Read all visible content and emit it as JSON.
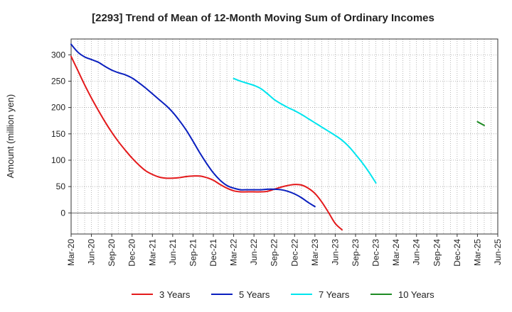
{
  "chart_data": {
    "type": "line",
    "title": "[2293]  Trend of Mean of 12-Month Moving Sum of Ordinary Incomes",
    "xlabel": "",
    "ylabel": "Amount (million yen)",
    "ylim": [
      -40,
      330
    ],
    "yticks": [
      0,
      50,
      100,
      150,
      200,
      250,
      300
    ],
    "grid": true,
    "legend_position": "bottom",
    "x_tick_labels": [
      "Mar-20",
      "Jun-20",
      "Sep-20",
      "Dec-20",
      "Mar-21",
      "Jun-21",
      "Sep-21",
      "Dec-21",
      "Mar-22",
      "Jun-22",
      "Sep-22",
      "Dec-22",
      "Mar-23",
      "Jun-23",
      "Sep-23",
      "Dec-23",
      "Mar-24",
      "Jun-24",
      "Sep-24",
      "Dec-24",
      "Mar-25",
      "Jun-25"
    ],
    "series": [
      {
        "name": "3 Years",
        "color": "#e41a1c",
        "x_start": 0,
        "values": [
          297,
          270,
          243,
          218,
          195,
          173,
          153,
          135,
          119,
          104,
          91,
          80,
          73,
          68,
          66,
          66,
          67,
          69,
          70,
          70,
          67,
          62,
          54,
          47,
          42,
          40,
          40,
          40,
          40,
          41,
          45,
          49,
          52,
          54,
          53,
          47,
          37,
          21,
          1,
          -20,
          -32
        ]
      },
      {
        "name": "5 Years",
        "color": "#0a1fbf",
        "x_start": 0,
        "values": [
          320,
          305,
          296,
          291,
          286,
          278,
          271,
          266,
          262,
          256,
          247,
          237,
          226,
          215,
          204,
          191,
          175,
          157,
          136,
          114,
          94,
          76,
          62,
          52,
          47,
          44,
          44,
          44,
          44,
          45,
          45,
          44,
          41,
          36,
          29,
          20,
          12
        ]
      },
      {
        "name": "7 Years",
        "color": "#00e5ee",
        "x_start": 24,
        "values": [
          255,
          250,
          246,
          242,
          236,
          226,
          215,
          207,
          200,
          194,
          187,
          179,
          171,
          163,
          155,
          147,
          138,
          126,
          111,
          95,
          77,
          57
        ]
      },
      {
        "name": "10 Years",
        "color": "#1e8b24",
        "x_start": 60,
        "values": [
          173,
          166
        ]
      }
    ]
  }
}
